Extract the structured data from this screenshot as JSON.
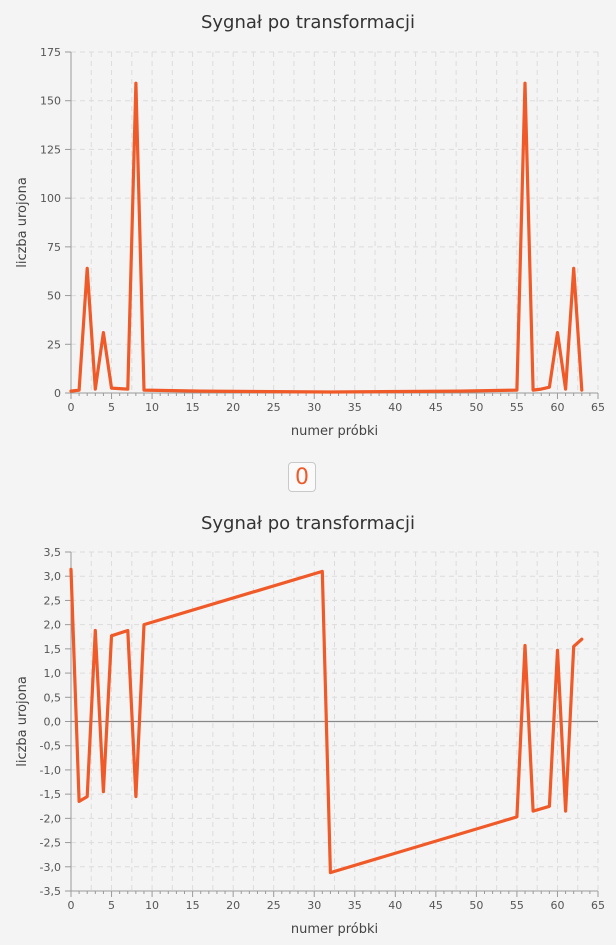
{
  "toggle": {
    "label": "0"
  },
  "accent_color": "#f05a28",
  "chart_data": [
    {
      "type": "line",
      "title": "Sygnał po transformacji",
      "xlabel": "numer próbki",
      "ylabel": "liczba urojona",
      "xlim": [
        0,
        65
      ],
      "ylim": [
        0,
        175
      ],
      "grid": true,
      "x_ticks": [
        "0",
        "5",
        "10",
        "15",
        "20",
        "25",
        "30",
        "35",
        "40",
        "45",
        "50",
        "55",
        "60",
        "65"
      ],
      "y_ticks": [
        "0",
        "25",
        "50",
        "75",
        "100",
        "125",
        "150",
        "175"
      ],
      "x_tick_values": [
        0,
        5,
        10,
        15,
        20,
        25,
        30,
        35,
        40,
        45,
        50,
        55,
        60,
        65
      ],
      "y_tick_values": [
        0,
        25,
        50,
        75,
        100,
        125,
        150,
        175
      ],
      "series": [
        {
          "color": "#f05a28",
          "x": [
            0,
            1,
            2,
            3,
            4,
            5,
            7,
            8,
            9,
            16,
            32,
            48,
            55,
            56,
            57,
            58,
            59,
            60,
            61,
            62,
            63
          ],
          "y": [
            1,
            1.5,
            64,
            2,
            31,
            2.5,
            2,
            159,
            1.5,
            1,
            0.5,
            1,
            1.5,
            159,
            1.5,
            2,
            3,
            31,
            2,
            64,
            1.5
          ]
        }
      ]
    },
    {
      "type": "line",
      "title": "Sygnał po transformacji",
      "xlabel": "numer próbki",
      "ylabel": "liczba urojona",
      "xlim": [
        0,
        65
      ],
      "ylim": [
        -3.5,
        3.5
      ],
      "grid": true,
      "zero_line": true,
      "x_ticks": [
        "0",
        "5",
        "10",
        "15",
        "20",
        "25",
        "30",
        "35",
        "40",
        "45",
        "50",
        "55",
        "60",
        "65"
      ],
      "y_ticks": [
        "3,5",
        "3,0",
        "2,5",
        "2,0",
        "1,5",
        "1,0",
        "0,5",
        "0,0",
        "-0,5",
        "-1,0",
        "-1,5",
        "-2,0",
        "-2,5",
        "-3,0",
        "-3,5"
      ],
      "x_tick_values": [
        0,
        5,
        10,
        15,
        20,
        25,
        30,
        35,
        40,
        45,
        50,
        55,
        60,
        65
      ],
      "y_tick_values": [
        3.5,
        3,
        2.5,
        2,
        1.5,
        1,
        0.5,
        0,
        -0.5,
        -1,
        -1.5,
        -2,
        -2.5,
        -3,
        -3.5
      ],
      "series": [
        {
          "color": "#f05a28",
          "x": [
            0,
            1,
            2,
            3,
            4,
            5,
            7,
            8,
            9,
            31,
            32,
            55,
            56,
            57,
            59,
            60,
            61,
            62,
            63
          ],
          "y": [
            3.14,
            -1.65,
            -1.55,
            1.88,
            -1.45,
            1.77,
            1.88,
            -1.55,
            2.0,
            3.1,
            -3.12,
            -1.97,
            1.57,
            -1.85,
            -1.75,
            1.47,
            -1.85,
            1.55,
            1.7
          ]
        }
      ]
    }
  ]
}
